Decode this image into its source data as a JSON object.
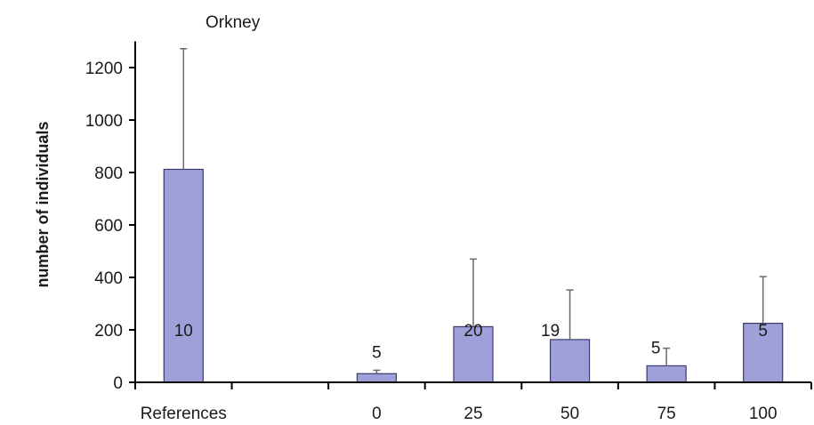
{
  "chart_data": {
    "type": "bar",
    "title": "Orkney",
    "xlabel": "",
    "ylabel": "number of individuals",
    "categories": [
      "References",
      "",
      "0",
      "25",
      "50",
      "75",
      "100"
    ],
    "values": [
      812,
      null,
      33,
      212,
      163,
      63,
      225
    ],
    "error_upper": [
      1272,
      null,
      46,
      470,
      352,
      130,
      403
    ],
    "bar_labels": [
      "10",
      "",
      "5",
      "20",
      "19",
      "5",
      "5"
    ],
    "ylim": [
      0,
      1300
    ],
    "yticks": [
      0,
      200,
      400,
      600,
      800,
      1000,
      1200
    ],
    "grid": false,
    "legend": "none",
    "bar_color": "#9f9fd9",
    "bar_edge_color": "#3a3a6e",
    "errorbar_color": "#6a6a6a"
  }
}
